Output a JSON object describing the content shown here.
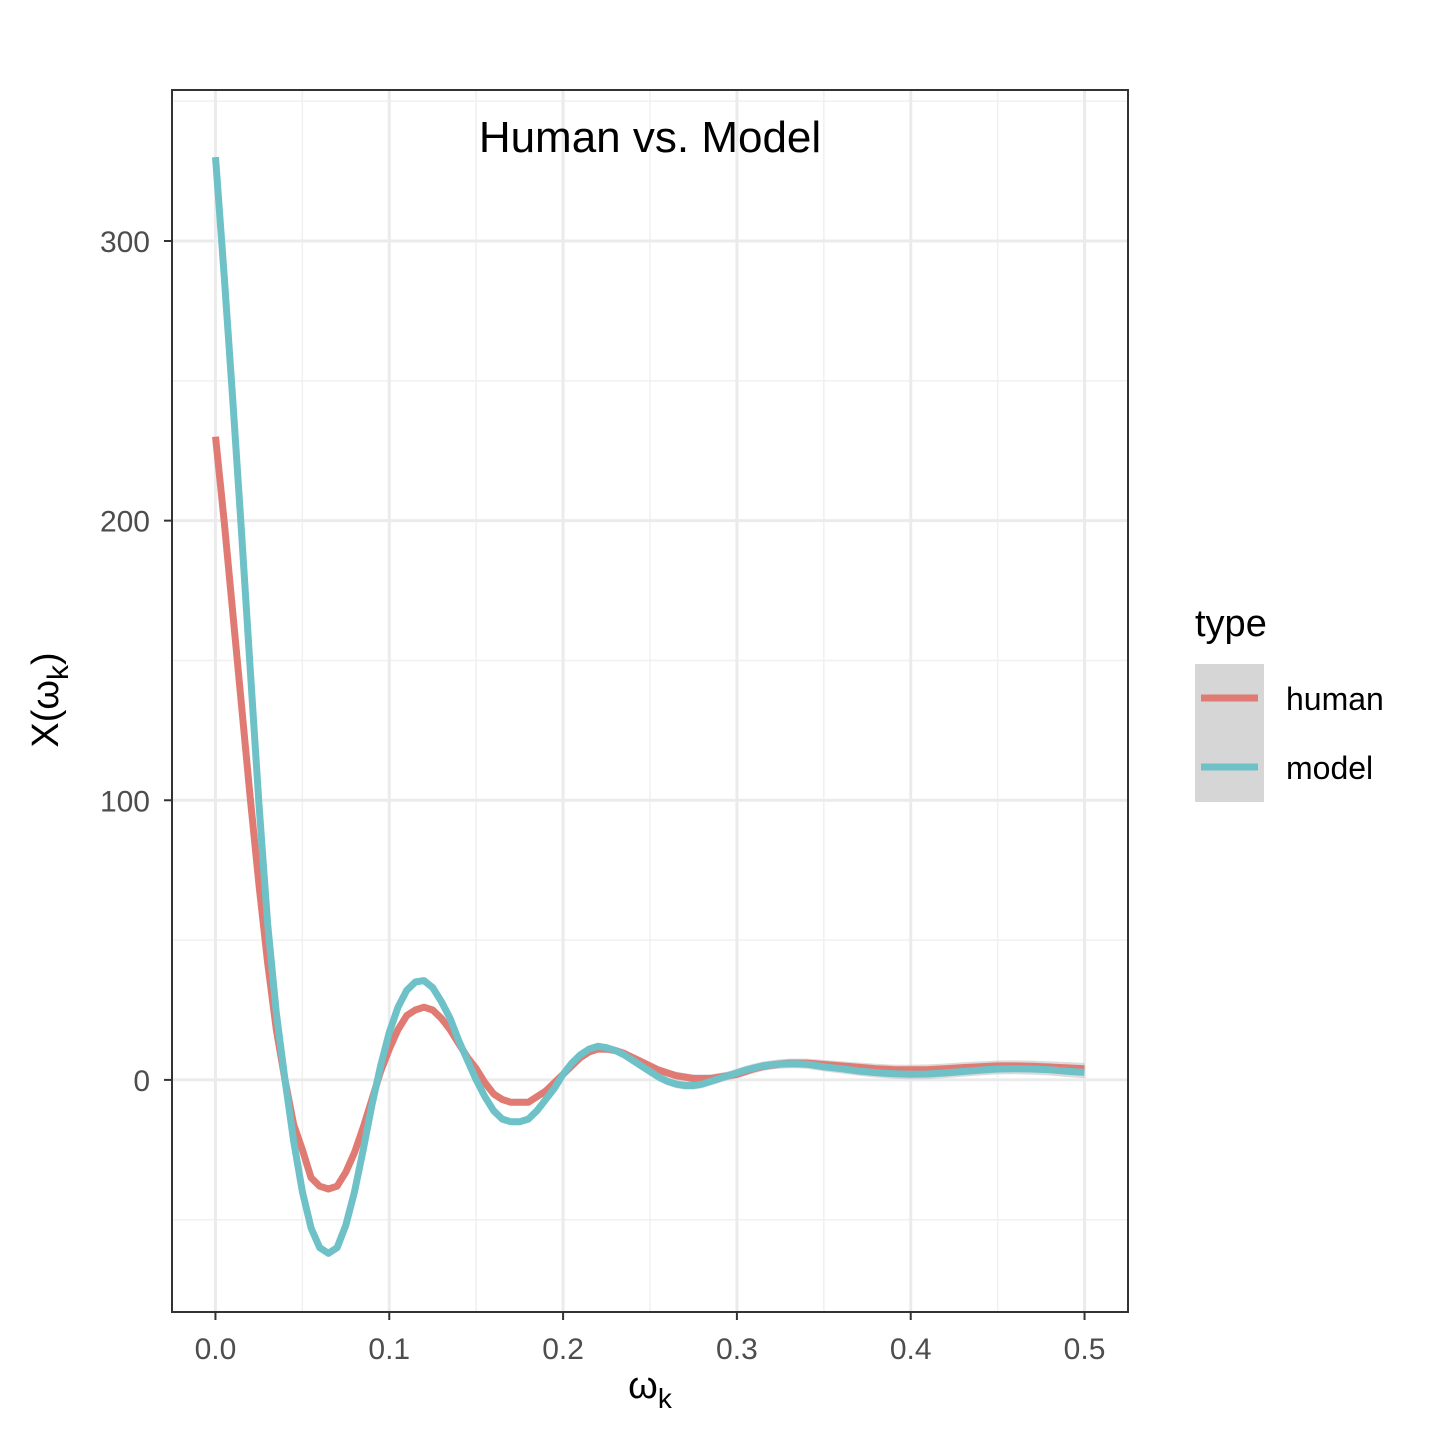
{
  "chart_data": {
    "type": "line",
    "title": "Human vs. Model",
    "xlabel": "ω",
    "xlabel_subscript": "k",
    "ylabel": "X(ω",
    "ylabel_subscript": "k",
    "ylabel_close": ")",
    "xlim": [
      -0.025,
      0.525
    ],
    "ylim": [
      -83,
      354
    ],
    "x_ticks": [
      0.0,
      0.1,
      0.2,
      0.3,
      0.4,
      0.5
    ],
    "x_tick_labels": [
      "0.0",
      "0.1",
      "0.2",
      "0.3",
      "0.4",
      "0.5"
    ],
    "y_ticks": [
      0,
      100,
      200,
      300
    ],
    "y_tick_labels": [
      "0",
      "100",
      "200",
      "300"
    ],
    "grid": true,
    "legend_title": "type",
    "legend_position": "right",
    "series": [
      {
        "name": "human",
        "color": "#E07B73",
        "points": [
          [
            0.0,
            230
          ],
          [
            0.005,
            200
          ],
          [
            0.01,
            167
          ],
          [
            0.015,
            134
          ],
          [
            0.02,
            101
          ],
          [
            0.025,
            70
          ],
          [
            0.03,
            42
          ],
          [
            0.035,
            18
          ],
          [
            0.04,
            0
          ],
          [
            0.045,
            -16
          ],
          [
            0.05,
            -25
          ],
          [
            0.055,
            -35
          ],
          [
            0.06,
            -38
          ],
          [
            0.065,
            -39
          ],
          [
            0.07,
            -38
          ],
          [
            0.075,
            -33
          ],
          [
            0.08,
            -26
          ],
          [
            0.085,
            -17
          ],
          [
            0.09,
            -7
          ],
          [
            0.095,
            3
          ],
          [
            0.1,
            11
          ],
          [
            0.105,
            18
          ],
          [
            0.11,
            23
          ],
          [
            0.115,
            25
          ],
          [
            0.12,
            26
          ],
          [
            0.125,
            25
          ],
          [
            0.13,
            22
          ],
          [
            0.135,
            18
          ],
          [
            0.14,
            13
          ],
          [
            0.145,
            8
          ],
          [
            0.15,
            4
          ],
          [
            0.155,
            -1
          ],
          [
            0.16,
            -5
          ],
          [
            0.165,
            -7
          ],
          [
            0.17,
            -8
          ],
          [
            0.175,
            -8
          ],
          [
            0.18,
            -8
          ],
          [
            0.185,
            -6
          ],
          [
            0.19,
            -4
          ],
          [
            0.195,
            -1
          ],
          [
            0.2,
            2
          ],
          [
            0.205,
            5
          ],
          [
            0.21,
            8
          ],
          [
            0.215,
            10
          ],
          [
            0.22,
            11
          ],
          [
            0.225,
            11
          ],
          [
            0.23,
            10.5
          ],
          [
            0.235,
            9.5
          ],
          [
            0.24,
            8
          ],
          [
            0.245,
            6.5
          ],
          [
            0.25,
            5
          ],
          [
            0.255,
            3.5
          ],
          [
            0.26,
            2.5
          ],
          [
            0.265,
            1.5
          ],
          [
            0.27,
            1
          ],
          [
            0.275,
            0.5
          ],
          [
            0.28,
            0.5
          ],
          [
            0.285,
            0.5
          ],
          [
            0.29,
            1
          ],
          [
            0.295,
            1.5
          ],
          [
            0.3,
            2
          ],
          [
            0.305,
            3
          ],
          [
            0.31,
            4
          ],
          [
            0.315,
            4.8
          ],
          [
            0.32,
            5.3
          ],
          [
            0.325,
            5.7
          ],
          [
            0.33,
            6
          ],
          [
            0.335,
            6
          ],
          [
            0.34,
            6
          ],
          [
            0.345,
            5.8
          ],
          [
            0.35,
            5.5
          ],
          [
            0.36,
            5
          ],
          [
            0.37,
            4.5
          ],
          [
            0.38,
            4
          ],
          [
            0.39,
            3.7
          ],
          [
            0.4,
            3.6
          ],
          [
            0.41,
            3.7
          ],
          [
            0.42,
            4
          ],
          [
            0.43,
            4.4
          ],
          [
            0.44,
            4.7
          ],
          [
            0.45,
            5
          ],
          [
            0.46,
            5
          ],
          [
            0.47,
            4.9
          ],
          [
            0.48,
            4.6
          ],
          [
            0.49,
            4.3
          ],
          [
            0.5,
            4
          ]
        ]
      },
      {
        "name": "model",
        "color": "#6EC1C7",
        "points": [
          [
            0.0,
            330
          ],
          [
            0.005,
            288
          ],
          [
            0.01,
            243
          ],
          [
            0.015,
            196
          ],
          [
            0.02,
            147
          ],
          [
            0.025,
            99
          ],
          [
            0.03,
            56
          ],
          [
            0.035,
            24
          ],
          [
            0.04,
            0
          ],
          [
            0.045,
            -22
          ],
          [
            0.05,
            -40
          ],
          [
            0.055,
            -53
          ],
          [
            0.06,
            -60
          ],
          [
            0.065,
            -62
          ],
          [
            0.07,
            -60
          ],
          [
            0.075,
            -52
          ],
          [
            0.08,
            -40
          ],
          [
            0.085,
            -25
          ],
          [
            0.09,
            -9
          ],
          [
            0.095,
            5
          ],
          [
            0.1,
            17
          ],
          [
            0.105,
            26
          ],
          [
            0.11,
            32
          ],
          [
            0.115,
            35
          ],
          [
            0.12,
            35.5
          ],
          [
            0.125,
            33
          ],
          [
            0.13,
            28
          ],
          [
            0.135,
            22
          ],
          [
            0.14,
            14
          ],
          [
            0.145,
            7
          ],
          [
            0.15,
            0
          ],
          [
            0.155,
            -6
          ],
          [
            0.16,
            -11
          ],
          [
            0.165,
            -14
          ],
          [
            0.17,
            -15
          ],
          [
            0.175,
            -15
          ],
          [
            0.18,
            -14
          ],
          [
            0.185,
            -11
          ],
          [
            0.19,
            -7
          ],
          [
            0.195,
            -3
          ],
          [
            0.2,
            2
          ],
          [
            0.205,
            6
          ],
          [
            0.21,
            9
          ],
          [
            0.215,
            11
          ],
          [
            0.22,
            12
          ],
          [
            0.225,
            11.5
          ],
          [
            0.23,
            10.5
          ],
          [
            0.235,
            9
          ],
          [
            0.24,
            7
          ],
          [
            0.245,
            5
          ],
          [
            0.25,
            3
          ],
          [
            0.255,
            1
          ],
          [
            0.26,
            -0.5
          ],
          [
            0.265,
            -1.5
          ],
          [
            0.27,
            -2
          ],
          [
            0.275,
            -2
          ],
          [
            0.28,
            -1.5
          ],
          [
            0.285,
            -0.5
          ],
          [
            0.29,
            0.5
          ],
          [
            0.295,
            1.5
          ],
          [
            0.3,
            2.5
          ],
          [
            0.305,
            3.5
          ],
          [
            0.31,
            4.3
          ],
          [
            0.315,
            5
          ],
          [
            0.32,
            5.4
          ],
          [
            0.325,
            5.7
          ],
          [
            0.33,
            5.8
          ],
          [
            0.335,
            5.8
          ],
          [
            0.34,
            5.6
          ],
          [
            0.345,
            5.2
          ],
          [
            0.35,
            4.7
          ],
          [
            0.36,
            4
          ],
          [
            0.37,
            3.2
          ],
          [
            0.38,
            2.6
          ],
          [
            0.39,
            2.2
          ],
          [
            0.4,
            2
          ],
          [
            0.41,
            2.1
          ],
          [
            0.42,
            2.5
          ],
          [
            0.43,
            3
          ],
          [
            0.44,
            3.5
          ],
          [
            0.45,
            3.9
          ],
          [
            0.46,
            4
          ],
          [
            0.47,
            3.9
          ],
          [
            0.48,
            3.6
          ],
          [
            0.49,
            3.1
          ],
          [
            0.5,
            2.7
          ]
        ]
      }
    ]
  }
}
